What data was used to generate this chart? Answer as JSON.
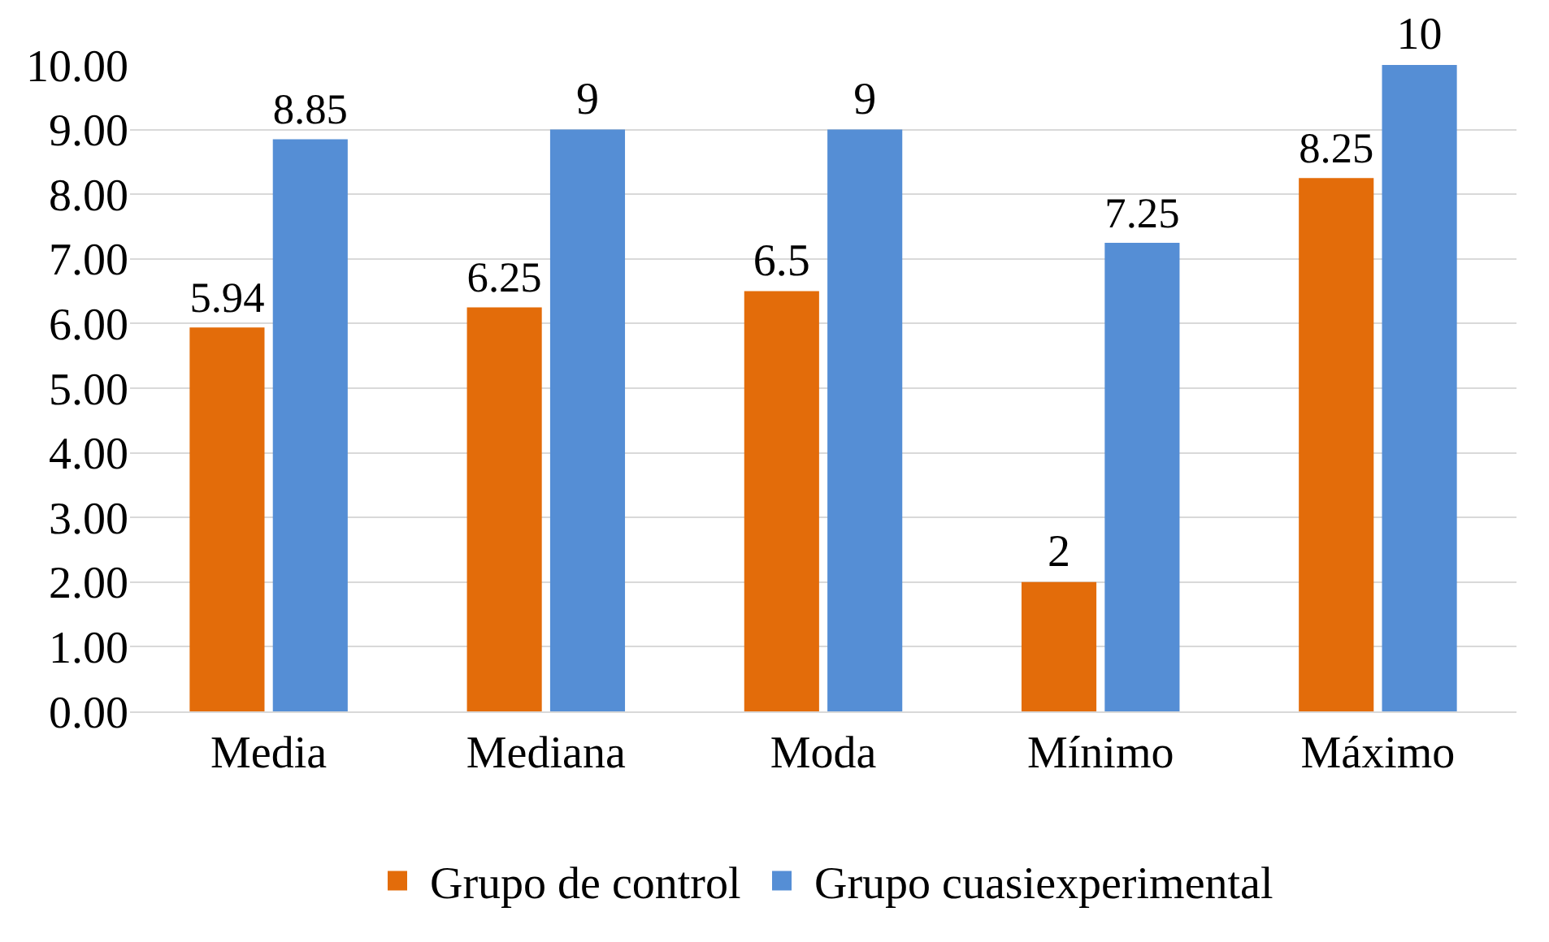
{
  "chart_data": {
    "type": "bar",
    "categories": [
      "Media",
      "Mediana",
      "Moda",
      "Mínimo",
      "Máximo"
    ],
    "series": [
      {
        "name": "Grupo de control",
        "color": "#e36c0a",
        "values": [
          5.94,
          6.25,
          6.5,
          2,
          8.25
        ]
      },
      {
        "name": "Grupo cuasiexperimental",
        "color": "#558ed5",
        "values": [
          8.85,
          9,
          9,
          7.25,
          10
        ]
      }
    ],
    "ylim": [
      0,
      10
    ],
    "yticks": [
      {
        "value": 0,
        "label": "0.00"
      },
      {
        "value": 1,
        "label": "1.00"
      },
      {
        "value": 2,
        "label": "2.00"
      },
      {
        "value": 3,
        "label": "3.00"
      },
      {
        "value": 4,
        "label": "4.00"
      },
      {
        "value": 5,
        "label": "5.00"
      },
      {
        "value": 6,
        "label": "6.00"
      },
      {
        "value": 7,
        "label": "7.00"
      },
      {
        "value": 8,
        "label": "8.00"
      },
      {
        "value": 9,
        "label": "9.00"
      },
      {
        "value": 10,
        "label": "10.00"
      }
    ],
    "grid": "y",
    "legend": "bottom",
    "data_labels": true
  }
}
